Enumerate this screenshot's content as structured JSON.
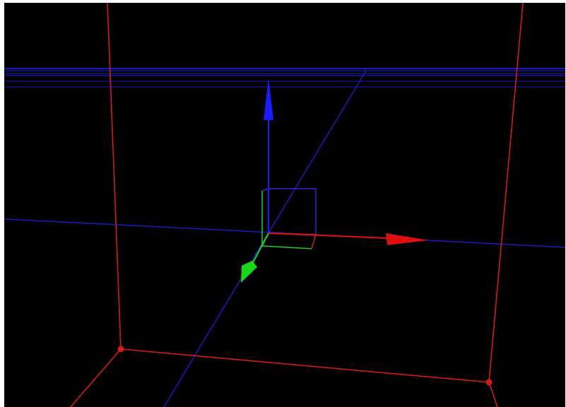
{
  "viewport": {
    "name": "3d-scene-viewport",
    "background": "#000000",
    "frame_color": "#ffffff"
  },
  "colors": {
    "bounding_box": "#d61a1a",
    "grid_axis": "#1a1ab4",
    "x_axis": "#e01010",
    "y_axis": "#18d818",
    "z_axis": "#1a1aff",
    "gizmo_box_blue": "#2a2ad0",
    "gizmo_box_green": "#22cc22",
    "gizmo_box_red": "#d02020"
  },
  "icons": {
    "x_arrow": "red-x-axis-arrow-icon",
    "y_arrow": "green-y-axis-arrow-icon",
    "z_arrow": "blue-z-axis-arrow-icon"
  }
}
